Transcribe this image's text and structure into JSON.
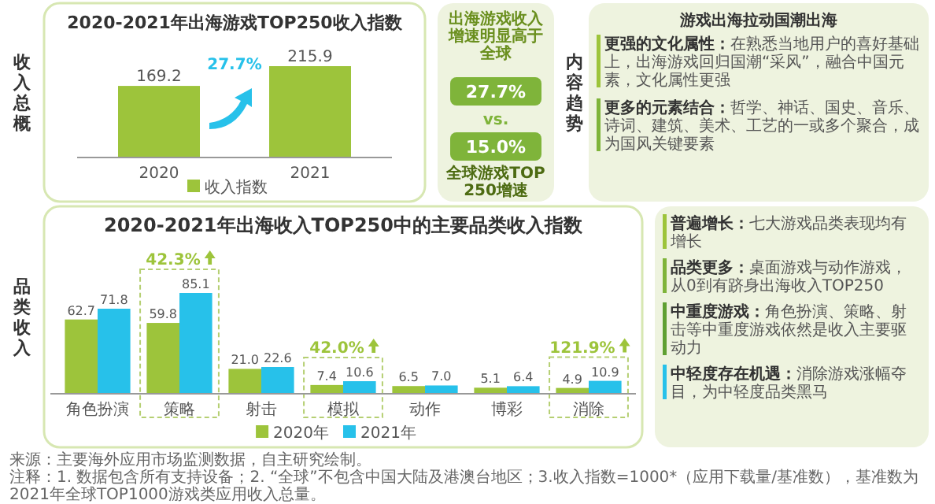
{
  "chart_data": [
    {
      "type": "bar",
      "title": "2020-2021年出海游戏TOP250收入指数",
      "ylabel": "收入总概",
      "categories": [
        "2020",
        "2021"
      ],
      "series": [
        {
          "name": "收入指数",
          "color": "#9dc43b",
          "values": [
            169.2,
            215.9
          ]
        }
      ],
      "data_labels": true,
      "legend": "bottom",
      "annotations": [
        "27.7%"
      ]
    },
    {
      "type": "other",
      "title": "出海游戏收入增速明显高于全球",
      "annotations": [
        "27.7%",
        "vs.",
        "15.0%",
        "全球游戏TOP250增速"
      ]
    },
    {
      "type": "other",
      "title": "游戏出海拉动国潮出海",
      "ylabel": "内容趋势",
      "annotations": [
        "更强的文化属性：在熟悉当地用户的喜好基础上，出海游戏回归国潮“采风”，融合中国元素，文化属性更强",
        "更多的元素结合：哲学、神话、国史、音乐、诗词、建筑、美术、工艺的一或多个聚合，成为国风关键要素"
      ]
    },
    {
      "type": "bar",
      "title": "2020-2021年出海收入TOP250中的主要品类收入指数",
      "ylabel": "品类收入",
      "categories": [
        "角色扮演",
        "策略",
        "射击",
        "模拟",
        "动作",
        "博彩",
        "消除"
      ],
      "series": [
        {
          "name": "2020年",
          "color": "#9dc43b",
          "values": [
            62.7,
            59.8,
            21.0,
            7.4,
            6.5,
            5.1,
            4.9
          ],
          "value_labels": [
            "62.7",
            "59.8",
            "21.0",
            "7.4",
            "6.5",
            "5.1",
            "4.9"
          ]
        },
        {
          "name": "2021年",
          "color": "#27c1ea",
          "values": [
            71.8,
            85.1,
            22.6,
            10.6,
            7.0,
            6.4,
            10.9
          ],
          "value_labels": [
            "71.8",
            "85.1",
            "22.6",
            "10.6",
            "7.0",
            "6.4",
            "10.9"
          ]
        }
      ],
      "legend": "bottom",
      "annotations": [
        {
          "text": "42.3%",
          "x": "策略",
          "y": 85.1
        },
        {
          "text": "42.0%",
          "x": "模拟",
          "y": 10.6
        },
        {
          "text": "121.9%",
          "x": "消除",
          "y": 10.9
        },
        "来源：主要海外应用市场监测数据，自主研究绘制。",
        "注释：1. 数据包含所有支持设备；2. “全球”不包含中国大陆及港澳台地区；3.收入指数=1000*（应用下载量/基准数），基准数为2021年全球TOP1000游戏类应用收入总量。"
      ]
    },
    {
      "type": "other",
      "annotations": [
        "普遍增长：七大游戏品类表现均有增长",
        "品类更多：桌面游戏与动作游戏，从0到有跻身出海收入TOP250",
        "中重度游戏：角色扮演、策略、射击等中重度游戏依然是收入主要驱动力",
        "中轻度存在机遇：消除游戏涨幅夺目，为中轻度品类黑马"
      ]
    }
  ]
}
